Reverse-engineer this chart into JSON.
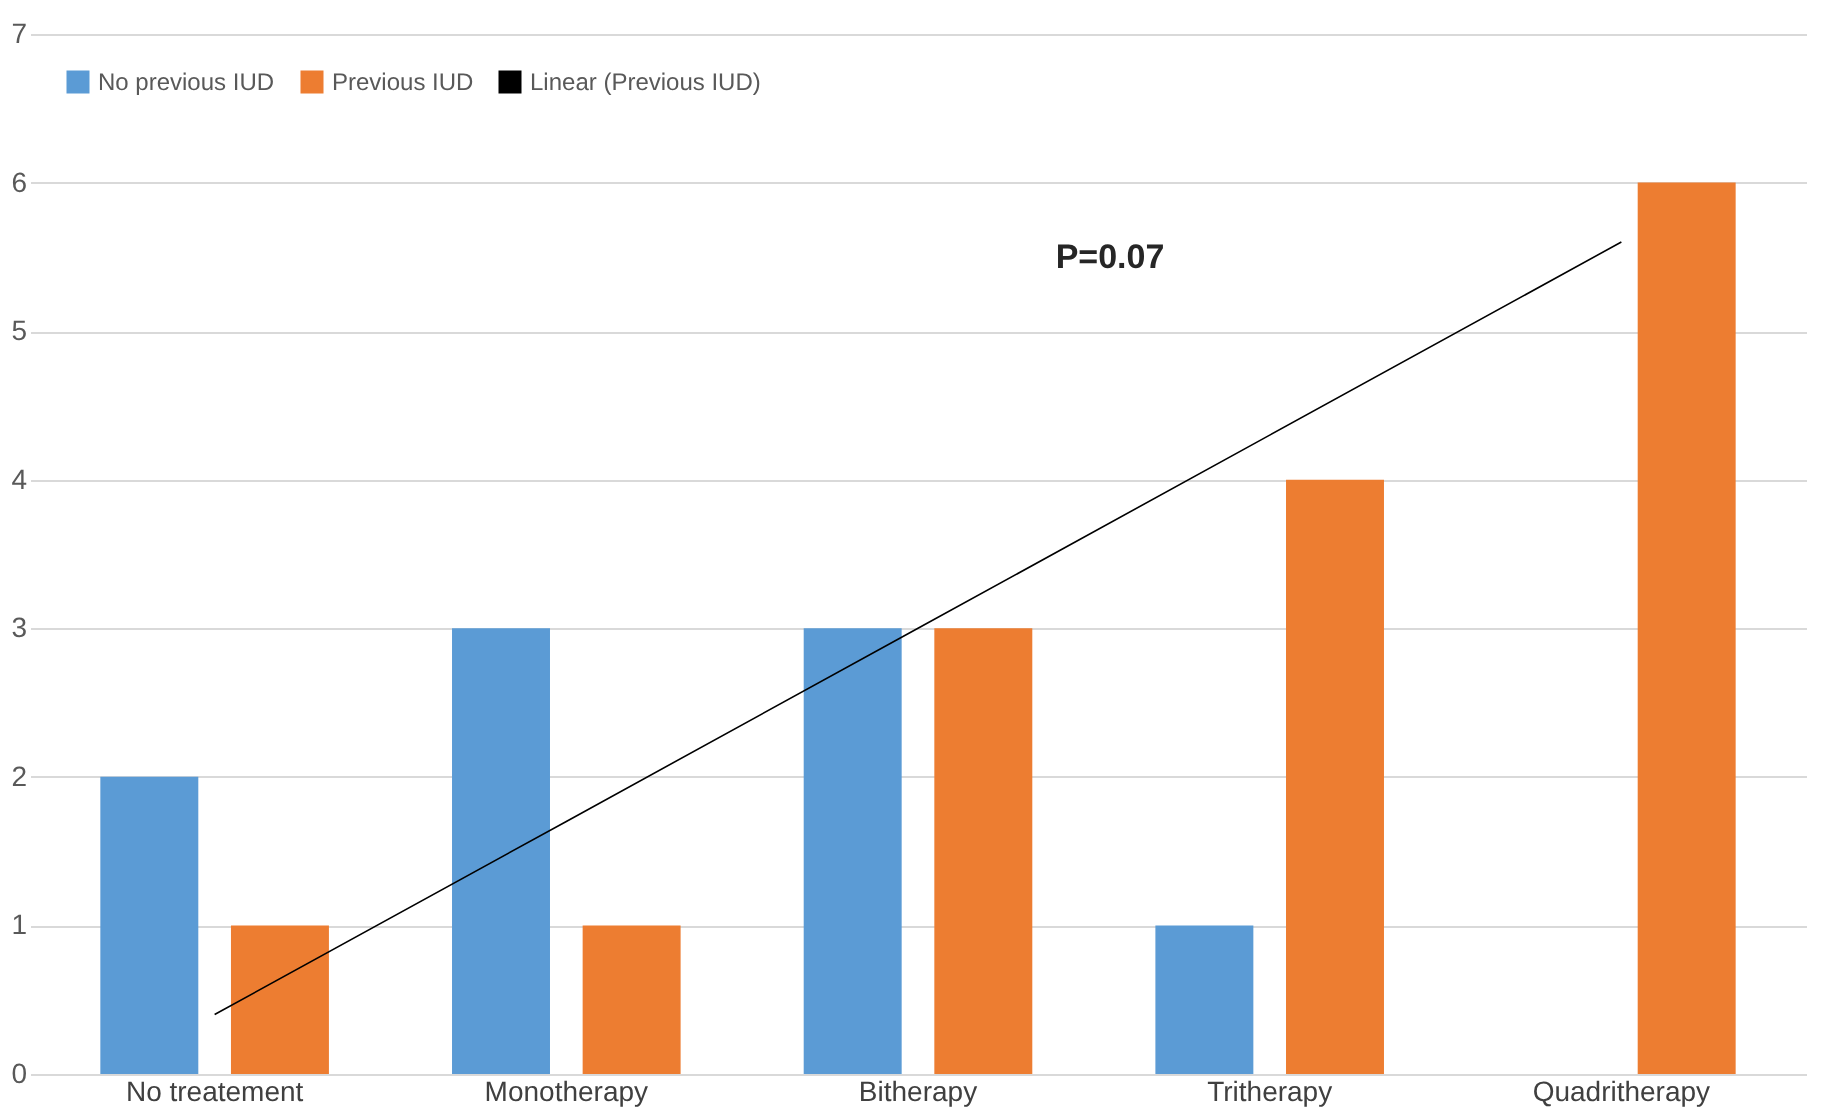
{
  "chart_data": {
    "type": "bar",
    "categories": [
      "No treatement",
      "Monotherapy",
      "Bitherapy",
      "Tritherapy",
      "Quadritherapy"
    ],
    "series": [
      {
        "name": "No previous IUD",
        "color": "#5b9bd5",
        "values": [
          2,
          3,
          3,
          1,
          0
        ]
      },
      {
        "name": "Previous IUD",
        "color": "#ed7d31",
        "values": [
          1,
          1,
          3,
          4,
          6
        ]
      },
      {
        "name": "Linear (Previous IUD)",
        "type": "line",
        "color": "#000000",
        "values": [
          0.4,
          1.7,
          3.0,
          4.3,
          5.6
        ],
        "marker": "none"
      }
    ],
    "ylim": [
      0,
      7
    ],
    "yticks": [
      0,
      1,
      2,
      3,
      4,
      5,
      6,
      7
    ],
    "grid": "y",
    "legend": "top left",
    "annotations": [
      "P=0.07"
    ]
  }
}
